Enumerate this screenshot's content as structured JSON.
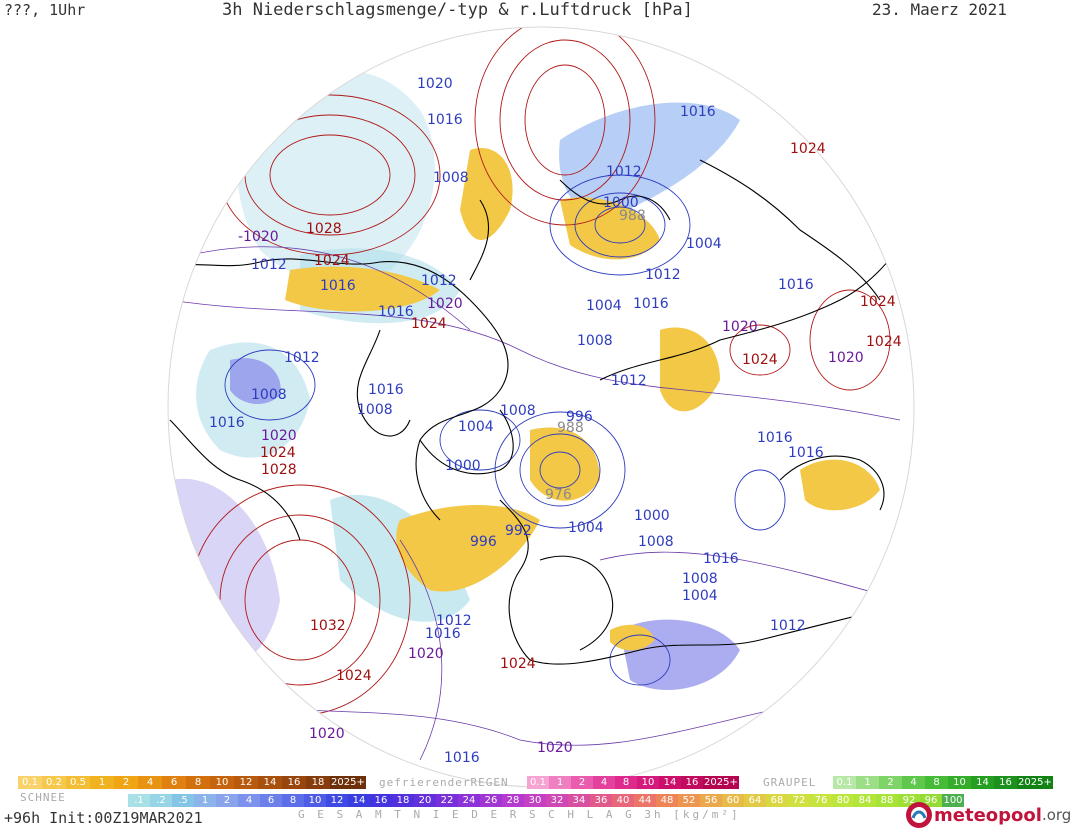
{
  "header": {
    "left": "???, 1Uhr",
    "title": "3h Niederschlagsmenge/-typ & r.Luftdruck [hPa]",
    "date": "23. Maerz 2021"
  },
  "pressure_labels": [
    {
      "text": "1020",
      "color": "#2e3dbf"
    },
    {
      "text": "1016",
      "color": "#2e3dbf"
    },
    {
      "text": "1008",
      "color": "#2e3dbf"
    },
    {
      "text": "1016",
      "color": "#2e3dbf"
    },
    {
      "text": "1024",
      "color": "#a01010"
    },
    {
      "text": "1012",
      "color": "#2e3dbf"
    },
    {
      "text": "1000",
      "color": "#2e3dbf"
    },
    {
      "text": "988",
      "color": "#8a8a8a"
    },
    {
      "text": "1004",
      "color": "#2e3dbf"
    },
    {
      "text": "-1020",
      "color": "#6a1a9a"
    },
    {
      "text": "1028",
      "color": "#a01010"
    },
    {
      "text": "1012",
      "color": "#2e3dbf"
    },
    {
      "text": "1024",
      "color": "#a01010"
    },
    {
      "text": "1016",
      "color": "#2e3dbf"
    },
    {
      "text": "1012",
      "color": "#2e3dbf"
    },
    {
      "text": "1020",
      "color": "#6a1a9a"
    },
    {
      "text": "1016",
      "color": "#2e3dbf"
    },
    {
      "text": "1024",
      "color": "#a01010"
    },
    {
      "text": "1012",
      "color": "#2e3dbf"
    },
    {
      "text": "1004",
      "color": "#2e3dbf"
    },
    {
      "text": "1016",
      "color": "#2e3dbf"
    },
    {
      "text": "1016",
      "color": "#2e3dbf"
    },
    {
      "text": "1024",
      "color": "#a01010"
    },
    {
      "text": "1008",
      "color": "#2e3dbf"
    },
    {
      "text": "1020",
      "color": "#6a1a9a"
    },
    {
      "text": "1024",
      "color": "#a01010"
    },
    {
      "text": "1024",
      "color": "#a01010"
    },
    {
      "text": "1020",
      "color": "#6a1a9a"
    },
    {
      "text": "1012",
      "color": "#2e3dbf"
    },
    {
      "text": "1008",
      "color": "#2e3dbf"
    },
    {
      "text": "1016",
      "color": "#2e3dbf"
    },
    {
      "text": "1012",
      "color": "#2e3dbf"
    },
    {
      "text": "1008",
      "color": "#2e3dbf"
    },
    {
      "text": "1008",
      "color": "#2e3dbf"
    },
    {
      "text": "996",
      "color": "#2e3dbf"
    },
    {
      "text": "988",
      "color": "#8a8a8a"
    },
    {
      "text": "1016",
      "color": "#2e3dbf"
    },
    {
      "text": "1004",
      "color": "#2e3dbf"
    },
    {
      "text": "1016",
      "color": "#2e3dbf"
    },
    {
      "text": "1016",
      "color": "#2e3dbf"
    },
    {
      "text": "1020",
      "color": "#6a1a9a"
    },
    {
      "text": "1024",
      "color": "#a01010"
    },
    {
      "text": "1028",
      "color": "#a01010"
    },
    {
      "text": "1000",
      "color": "#2e3dbf"
    },
    {
      "text": "976",
      "color": "#8a8a8a"
    },
    {
      "text": "1004",
      "color": "#2e3dbf"
    },
    {
      "text": "1000",
      "color": "#2e3dbf"
    },
    {
      "text": "996",
      "color": "#2e3dbf"
    },
    {
      "text": "992",
      "color": "#2e3dbf"
    },
    {
      "text": "1008",
      "color": "#2e3dbf"
    },
    {
      "text": "1016",
      "color": "#2e3dbf"
    },
    {
      "text": "1008",
      "color": "#2e3dbf"
    },
    {
      "text": "1004",
      "color": "#2e3dbf"
    },
    {
      "text": "1012",
      "color": "#2e3dbf"
    },
    {
      "text": "1016",
      "color": "#2e3dbf"
    },
    {
      "text": "1032",
      "color": "#a01010"
    },
    {
      "text": "1020",
      "color": "#6a1a9a"
    },
    {
      "text": "1024",
      "color": "#a01010"
    },
    {
      "text": "1012",
      "color": "#2e3dbf"
    },
    {
      "text": "1024",
      "color": "#a01010"
    },
    {
      "text": "1020",
      "color": "#6a1a9a"
    },
    {
      "text": "1016",
      "color": "#2e3dbf"
    },
    {
      "text": "1020",
      "color": "#6a1a9a"
    }
  ],
  "legend": {
    "schnee": {
      "name": "SCHNEE",
      "items": [
        {
          "t": "0.1",
          "c": "#f9d36a"
        },
        {
          "t": "0.2",
          "c": "#f6c94c"
        },
        {
          "t": "0.5",
          "c": "#f3be33"
        },
        {
          "t": "1",
          "c": "#f1b21f"
        },
        {
          "t": "2",
          "c": "#efa514"
        },
        {
          "t": "4",
          "c": "#e99312"
        },
        {
          "t": "6",
          "c": "#df8010"
        },
        {
          "t": "8",
          "c": "#d2700e"
        },
        {
          "t": "10",
          "c": "#c6650e"
        },
        {
          "t": "12",
          "c": "#b85b0e"
        },
        {
          "t": "14",
          "c": "#a8500e"
        },
        {
          "t": "16",
          "c": "#98460d"
        },
        {
          "t": "18",
          "c": "#863c0c"
        },
        {
          "t": "2025+",
          "c": "#6e300a"
        }
      ]
    },
    "regen": {
      "name": "gefrierenderREGEN",
      "items": [
        {
          "t": "0.1",
          "c": "#f4a3d2"
        },
        {
          "t": "1",
          "c": "#ef7fc0"
        },
        {
          "t": "2",
          "c": "#ea5cae"
        },
        {
          "t": "4",
          "c": "#e4409e"
        },
        {
          "t": "8",
          "c": "#de2a8c"
        },
        {
          "t": "10",
          "c": "#d6197c"
        },
        {
          "t": "14",
          "c": "#cd0f6c"
        },
        {
          "t": "16",
          "c": "#c20a5e"
        },
        {
          "t": "2025+",
          "c": "#b40550"
        }
      ]
    },
    "graupel": {
      "name": "GRAUPEL",
      "items": [
        {
          "t": "0.1",
          "c": "#b8e8a8"
        },
        {
          "t": "1",
          "c": "#9bde86"
        },
        {
          "t": "2",
          "c": "#7fd468"
        },
        {
          "t": "4",
          "c": "#5fc84c"
        },
        {
          "t": "8",
          "c": "#45bb38"
        },
        {
          "t": "10",
          "c": "#33ad2a"
        },
        {
          "t": "14",
          "c": "#259f22"
        },
        {
          "t": "16",
          "c": "#1c911c"
        },
        {
          "t": "2025+",
          "c": "#138215"
        }
      ]
    },
    "gesamt": {
      "name": "G E S A M T N I E D E R S C H L A G   3h   [kg/m²]",
      "items": [
        {
          "t": ".1",
          "c": "#a8e0e8"
        },
        {
          "t": ".2",
          "c": "#96d4e6"
        },
        {
          "t": ".5",
          "c": "#84c4e4"
        },
        {
          "t": "1",
          "c": "#8cb4ea"
        },
        {
          "t": "2",
          "c": "#8aa4ec"
        },
        {
          "t": "4",
          "c": "#7c92ec"
        },
        {
          "t": "6",
          "c": "#6c80ea"
        },
        {
          "t": "8",
          "c": "#5c6ee8"
        },
        {
          "t": "10",
          "c": "#4e5ce6"
        },
        {
          "t": "12",
          "c": "#3f4ae4"
        },
        {
          "t": "14",
          "c": "#3a3ee0"
        },
        {
          "t": "16",
          "c": "#4434e0"
        },
        {
          "t": "18",
          "c": "#5230de"
        },
        {
          "t": "20",
          "c": "#6430dc"
        },
        {
          "t": "22",
          "c": "#7830da"
        },
        {
          "t": "24",
          "c": "#8c32d8"
        },
        {
          "t": "26",
          "c": "#a036d4"
        },
        {
          "t": "28",
          "c": "#b43ad0"
        },
        {
          "t": "30",
          "c": "#c440c4"
        },
        {
          "t": "32",
          "c": "#d048b4"
        },
        {
          "t": "34",
          "c": "#da50a0"
        },
        {
          "t": "36",
          "c": "#e25a8c"
        },
        {
          "t": "40",
          "c": "#e8667a"
        },
        {
          "t": "44",
          "c": "#ec7468"
        },
        {
          "t": "48",
          "c": "#ee8458"
        },
        {
          "t": "52",
          "c": "#ee9650"
        },
        {
          "t": "56",
          "c": "#eca84c"
        },
        {
          "t": "60",
          "c": "#e8ba48"
        },
        {
          "t": "64",
          "c": "#e2ca44"
        },
        {
          "t": "68",
          "c": "#dad842"
        },
        {
          "t": "72",
          "c": "#d0e040"
        },
        {
          "t": "76",
          "c": "#c6e43e"
        },
        {
          "t": "80",
          "c": "#bce63c"
        },
        {
          "t": "84",
          "c": "#b2e63a"
        },
        {
          "t": "88",
          "c": "#a8e438"
        },
        {
          "t": "92",
          "c": "#9ee036"
        },
        {
          "t": "96",
          "c": "#94dc34"
        },
        {
          "t": "100",
          "c": "#4caf50"
        }
      ]
    }
  },
  "footer": {
    "init": "+96h  Init:00Z19MAR2021",
    "brand": "meteopool",
    "brand_tld": ".org"
  },
  "colors": {
    "isobar_high": "#b01818",
    "isobar_low": "#2e3dbf",
    "isobar_mid": "#6a3aaa",
    "coastline": "#000000",
    "rain_fill": "#f1c232",
    "snow_fill": "#8fd3e0",
    "heavy_fill": "#7a7ae8"
  }
}
